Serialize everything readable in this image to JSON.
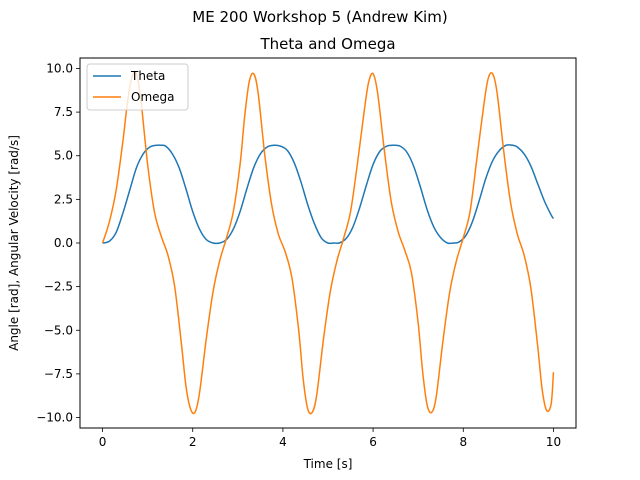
{
  "figure": {
    "suptitle": "ME 200 Workshop 5 (Andrew Kim)"
  },
  "chart_data": {
    "type": "line",
    "title": "Theta and Omega",
    "xlabel": "Time [s]",
    "ylabel": "Angle [rad], Angular Velocity [rad/s]",
    "xlim": [
      -0.5,
      10.5
    ],
    "ylim": [
      -10.6,
      10.6
    ],
    "xticks": [
      0,
      2,
      4,
      6,
      8,
      10
    ],
    "xtick_labels": [
      "0",
      "2",
      "4",
      "6",
      "8",
      "10"
    ],
    "yticks": [
      -10.0,
      -7.5,
      -5.0,
      -2.5,
      0.0,
      2.5,
      5.0,
      7.5,
      10.0
    ],
    "ytick_labels": [
      "−10.0",
      "−7.5",
      "−5.0",
      "−2.5",
      "0.0",
      "2.5",
      "5.0",
      "7.5",
      "10.0"
    ],
    "grid": false,
    "legend_position": "top-left",
    "series": [
      {
        "name": "Theta",
        "color": "#1f77b4",
        "x": [
          0,
          0.15,
          0.3,
          0.45,
          0.6,
          0.75,
          0.9,
          1.05,
          1.2,
          1.3,
          1.4,
          1.55,
          1.7,
          1.85,
          2.0,
          2.15,
          2.3,
          2.45,
          2.6,
          2.75,
          2.9,
          3.05,
          3.2,
          3.35,
          3.5,
          3.65,
          3.8,
          3.95,
          4.1,
          4.25,
          4.4,
          4.55,
          4.7,
          4.85,
          5.0,
          5.15,
          5.25,
          5.4,
          5.55,
          5.7,
          5.85,
          6.0,
          6.15,
          6.3,
          6.45,
          6.6,
          6.75,
          6.9,
          7.05,
          7.2,
          7.35,
          7.5,
          7.65,
          7.8,
          7.9,
          8.05,
          8.2,
          8.35,
          8.5,
          8.65,
          8.8,
          8.95,
          9.1,
          9.2,
          9.35,
          9.5,
          9.65,
          9.8,
          9.95,
          10.0
        ],
        "y": [
          0.0,
          0.1,
          0.6,
          1.7,
          3.0,
          4.3,
          5.1,
          5.5,
          5.6,
          5.6,
          5.55,
          5.1,
          4.3,
          3.1,
          1.8,
          0.8,
          0.2,
          0.0,
          0.0,
          0.2,
          0.8,
          1.8,
          3.1,
          4.3,
          5.1,
          5.5,
          5.6,
          5.55,
          5.3,
          4.6,
          3.5,
          2.2,
          1.1,
          0.3,
          0.0,
          0.0,
          0.0,
          0.25,
          0.9,
          2.0,
          3.3,
          4.5,
          5.25,
          5.55,
          5.6,
          5.55,
          5.2,
          4.4,
          3.2,
          1.9,
          0.9,
          0.3,
          0.0,
          0.0,
          0.05,
          0.4,
          1.2,
          2.4,
          3.7,
          4.7,
          5.3,
          5.6,
          5.6,
          5.5,
          5.1,
          4.4,
          3.4,
          2.4,
          1.6,
          1.4
        ]
      },
      {
        "name": "Omega",
        "color": "#ff7f0e",
        "x": [
          0,
          0.15,
          0.3,
          0.45,
          0.55,
          0.65,
          0.75,
          0.85,
          1.0,
          1.15,
          1.3,
          1.45,
          1.6,
          1.75,
          1.85,
          1.95,
          2.05,
          2.15,
          2.3,
          2.45,
          2.6,
          2.75,
          2.9,
          3.05,
          3.15,
          3.25,
          3.35,
          3.45,
          3.6,
          3.75,
          3.9,
          4.05,
          4.2,
          4.35,
          4.45,
          4.55,
          4.65,
          4.75,
          4.9,
          5.05,
          5.2,
          5.35,
          5.5,
          5.65,
          5.8,
          5.9,
          6.0,
          6.1,
          6.25,
          6.4,
          6.55,
          6.7,
          6.85,
          7.0,
          7.1,
          7.2,
          7.3,
          7.4,
          7.55,
          7.7,
          7.85,
          8.0,
          8.15,
          8.3,
          8.45,
          8.55,
          8.65,
          8.75,
          8.9,
          9.05,
          9.2,
          9.35,
          9.5,
          9.65,
          9.75,
          9.85,
          9.95,
          10.0
        ],
        "y": [
          0.0,
          1.2,
          3.0,
          5.8,
          8.0,
          9.5,
          9.7,
          8.2,
          4.5,
          1.8,
          0.4,
          -0.7,
          -2.5,
          -5.8,
          -8.2,
          -9.5,
          -9.7,
          -8.6,
          -5.5,
          -2.8,
          -1.0,
          0.3,
          1.8,
          4.5,
          7.2,
          9.2,
          9.7,
          8.6,
          5.0,
          2.2,
          0.5,
          -0.5,
          -2.0,
          -5.0,
          -7.8,
          -9.5,
          -9.7,
          -8.7,
          -5.5,
          -2.8,
          -1.0,
          0.3,
          1.8,
          4.5,
          7.5,
          9.2,
          9.7,
          8.6,
          5.3,
          2.4,
          0.7,
          -0.4,
          -1.7,
          -4.6,
          -7.4,
          -9.3,
          -9.7,
          -8.8,
          -5.6,
          -2.8,
          -1.0,
          0.3,
          1.8,
          4.8,
          7.8,
          9.4,
          9.7,
          8.6,
          5.2,
          2.3,
          0.5,
          -0.7,
          -2.6,
          -5.9,
          -8.4,
          -9.6,
          -9.2,
          -7.4
        ]
      }
    ]
  }
}
